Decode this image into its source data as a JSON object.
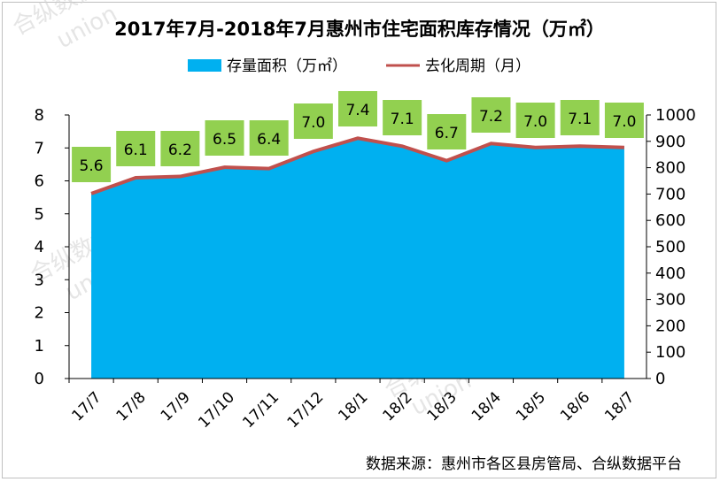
{
  "chart_data": {
    "type": "area+line",
    "title": "2017年7月-2018年7月惠州市住宅面积库存情况（万㎡）",
    "categories": [
      "17/7",
      "17/8",
      "17/9",
      "17/10",
      "17/11",
      "17/12",
      "18/1",
      "18/2",
      "18/3",
      "18/4",
      "18/5",
      "18/6",
      "18/7"
    ],
    "series": [
      {
        "name": "存量面积（万㎡）",
        "kind": "area",
        "axis": "right",
        "color": "#00b0f0",
        "values": [
          705,
          765,
          770,
          805,
          800,
          865,
          915,
          885,
          830,
          895,
          880,
          885,
          880
        ]
      },
      {
        "name": "去化周期（月）",
        "kind": "line",
        "axis": "left",
        "color": "#c0504d",
        "values": [
          5.6,
          6.1,
          6.2,
          6.5,
          6.4,
          7.0,
          7.4,
          7.1,
          6.7,
          7.2,
          7.0,
          7.1,
          7.0
        ],
        "labels": [
          "5.6",
          "6.1",
          "6.2",
          "6.5",
          "6.4",
          "7.0",
          "7.4",
          "7.1",
          "6.7",
          "7.2",
          "7.0",
          "7.1",
          "7.0"
        ],
        "label_bg": "#92d050"
      }
    ],
    "y_left": {
      "ticks": [
        "0",
        "1",
        "2",
        "3",
        "4",
        "5",
        "6",
        "7",
        "8"
      ],
      "range": [
        0,
        8
      ]
    },
    "y_right": {
      "ticks": [
        "0",
        "100",
        "200",
        "300",
        "400",
        "500",
        "600",
        "700",
        "800",
        "900",
        "1000"
      ],
      "range": [
        0,
        1000
      ]
    },
    "legend": [
      "存量面积（万㎡）",
      "去化周期（月）"
    ],
    "legend_position": "top",
    "source": "数据来源：惠州市各区县房管局、合纵数据平台"
  },
  "watermark": {
    "cn": "合纵数据",
    "en": "union"
  }
}
